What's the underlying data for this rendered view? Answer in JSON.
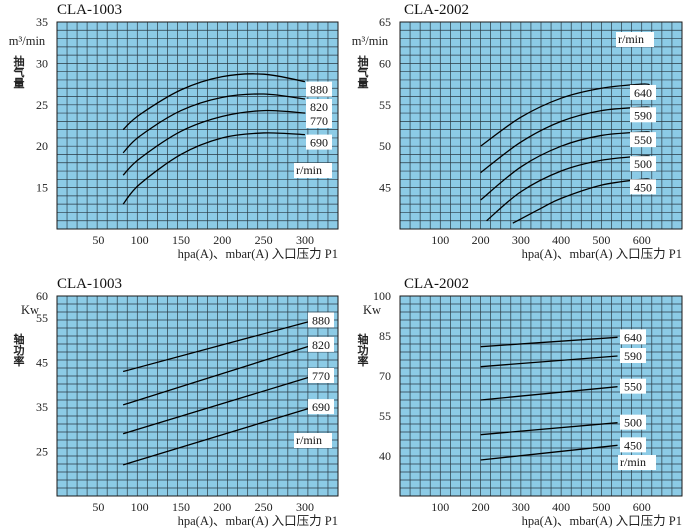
{
  "chart_data": [
    {
      "type": "line",
      "title": "CLA-1003",
      "ylabel": "m³/min",
      "ylabel_cjk": "抽气量",
      "xlabel": "hpa(A)、mbar(A) 入口压力 P1",
      "x_ticks": [
        "50",
        "100",
        "150",
        "200",
        "250",
        "300"
      ],
      "y_ticks": [
        "15",
        "20",
        "25",
        "30",
        "35"
      ],
      "xlim": [
        0,
        340
      ],
      "ylim": [
        10,
        35
      ],
      "unit_label": "r/min",
      "series": [
        {
          "name": "880",
          "x": [
            80,
            100,
            150,
            200,
            250,
            300
          ],
          "values": [
            22.0,
            23.8,
            26.8,
            28.4,
            28.7,
            27.8
          ]
        },
        {
          "name": "820",
          "x": [
            80,
            100,
            150,
            200,
            250,
            300
          ],
          "values": [
            19.2,
            21.2,
            24.3,
            25.9,
            26.3,
            25.7
          ]
        },
        {
          "name": "770",
          "x": [
            80,
            100,
            150,
            200,
            250,
            300
          ],
          "values": [
            16.5,
            18.5,
            21.8,
            23.6,
            24.3,
            24.0
          ]
        },
        {
          "name": "690",
          "x": [
            80,
            100,
            150,
            200,
            250,
            300
          ],
          "values": [
            13.0,
            15.4,
            19.0,
            21.0,
            21.6,
            21.4
          ]
        }
      ]
    },
    {
      "type": "line",
      "title": "CLA-2002",
      "ylabel": "m³/min",
      "ylabel_cjk": "抽气量",
      "xlabel": "hpa(A)、mbar(A) 入口压力 P1",
      "x_ticks": [
        "100",
        "200",
        "300",
        "400",
        "500",
        "600"
      ],
      "y_ticks": [
        "45",
        "50",
        "55",
        "60",
        "65"
      ],
      "xlim": [
        0,
        700
      ],
      "ylim": [
        40,
        65
      ],
      "unit_label": "r/min",
      "series": [
        {
          "name": "640",
          "x": [
            200,
            300,
            400,
            500,
            600,
            620
          ],
          "values": [
            50.0,
            53.5,
            55.8,
            57.0,
            57.5,
            57.4
          ]
        },
        {
          "name": "590",
          "x": [
            200,
            300,
            400,
            500,
            600,
            620
          ],
          "values": [
            46.8,
            50.5,
            53.0,
            54.3,
            54.7,
            54.7
          ]
        },
        {
          "name": "550",
          "x": [
            200,
            300,
            400,
            500,
            600,
            620
          ],
          "values": [
            43.5,
            47.5,
            50.0,
            51.3,
            51.7,
            51.7
          ]
        },
        {
          "name": "500",
          "x": [
            215,
            300,
            400,
            500,
            600,
            620
          ],
          "values": [
            41.0,
            44.5,
            47.0,
            48.3,
            48.8,
            48.8
          ]
        },
        {
          "name": "450",
          "x": [
            280,
            350,
            400,
            500,
            600,
            620
          ],
          "values": [
            40.7,
            42.5,
            43.7,
            45.3,
            46.0,
            46.0
          ]
        }
      ]
    },
    {
      "type": "line",
      "title": "CLA-1003",
      "ylabel": "Kw",
      "ylabel_cjk": "轴功率",
      "xlabel": "hpa(A)、mbar(A) 入口压力 P1",
      "x_ticks": [
        "50",
        "100",
        "150",
        "200",
        "250",
        "300"
      ],
      "y_ticks": [
        "25",
        "35",
        "45",
        "55",
        "60"
      ],
      "xlim": [
        0,
        340
      ],
      "ylim": [
        15,
        60
      ],
      "unit_label": "r/min",
      "series": [
        {
          "name": "880",
          "x": [
            80,
            310
          ],
          "values": [
            43.0,
            54.5
          ]
        },
        {
          "name": "820",
          "x": [
            80,
            310
          ],
          "values": [
            35.5,
            49.0
          ]
        },
        {
          "name": "770",
          "x": [
            80,
            310
          ],
          "values": [
            29.0,
            42.0
          ]
        },
        {
          "name": "690",
          "x": [
            80,
            310
          ],
          "values": [
            22.0,
            35.0
          ]
        }
      ]
    },
    {
      "type": "line",
      "title": "CLA-2002",
      "ylabel": "Kw",
      "ylabel_cjk": "轴功率",
      "xlabel": "hpa(A)、mbar(A) 入口压力 P1",
      "x_ticks": [
        "100",
        "200",
        "300",
        "400",
        "500",
        "600"
      ],
      "y_ticks": [
        "40",
        "55",
        "70",
        "85",
        "100"
      ],
      "xlim": [
        0,
        700
      ],
      "ylim": [
        25,
        100
      ],
      "unit_label": "r/min",
      "series": [
        {
          "name": "640",
          "x": [
            200,
            540
          ],
          "values": [
            81.0,
            84.5
          ]
        },
        {
          "name": "590",
          "x": [
            200,
            540
          ],
          "values": [
            73.5,
            77.5
          ]
        },
        {
          "name": "550",
          "x": [
            200,
            540
          ],
          "values": [
            61.0,
            66.0
          ]
        },
        {
          "name": "500",
          "x": [
            200,
            540
          ],
          "values": [
            48.0,
            52.5
          ]
        },
        {
          "name": "450",
          "x": [
            200,
            540
          ],
          "values": [
            38.5,
            44.0
          ]
        }
      ]
    }
  ]
}
